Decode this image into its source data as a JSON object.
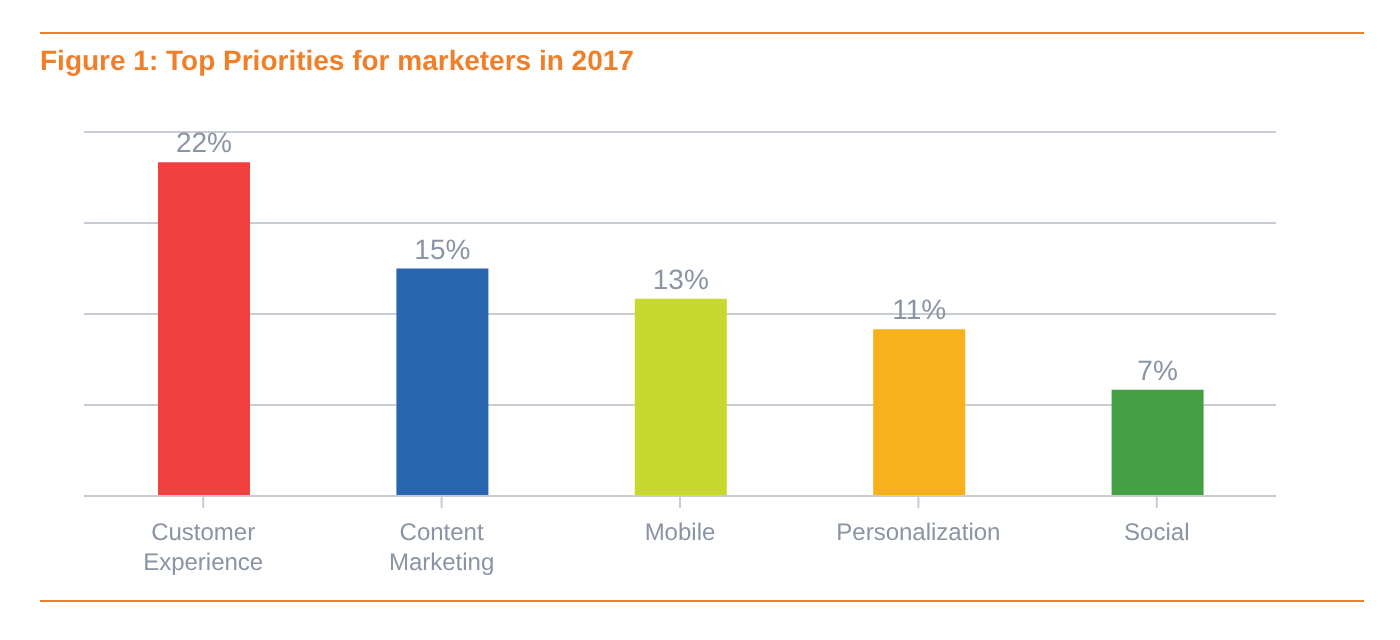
{
  "chart_data": {
    "type": "bar",
    "title": "Figure 1: Top Priorities for marketers in 2017",
    "categories": [
      "Customer Experience",
      "Content Marketing",
      "Mobile",
      "Personalization",
      "Social"
    ],
    "values": [
      22,
      15,
      13,
      11,
      7
    ],
    "colors": [
      "#f04040",
      "#2a66b0",
      "#c8d82e",
      "#f8b01c",
      "#44a044"
    ],
    "value_labels": [
      "22%",
      "15%",
      "13%",
      "11%",
      "7%"
    ],
    "grid": "y",
    "legend": false,
    "tick_labels": "x"
  }
}
